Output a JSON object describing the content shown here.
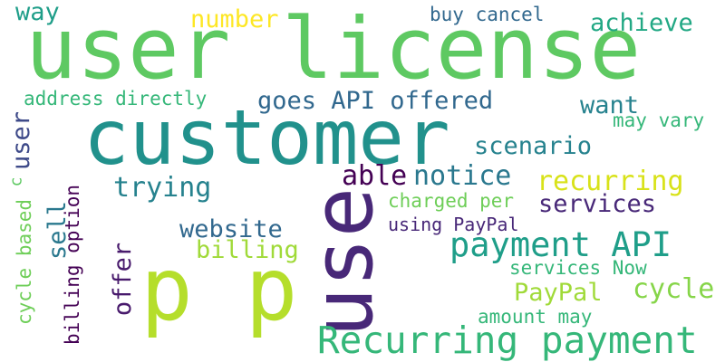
{
  "cloud": {
    "words": [
      {
        "text": "user license",
        "color": "#5ec962"
      },
      {
        "text": "customer",
        "color": "#21918c"
      },
      {
        "text": "p p",
        "color": "#b5de2b"
      },
      {
        "text": "use",
        "color": "#482878"
      },
      {
        "text": "Recurring payment",
        "color": "#35b779"
      },
      {
        "text": "payment API",
        "color": "#1f9e89"
      },
      {
        "text": "way",
        "color": "#1f9e89"
      },
      {
        "text": "number",
        "color": "#fde725"
      },
      {
        "text": "buy cancel",
        "color": "#31688e"
      },
      {
        "text": "achieve",
        "color": "#22a884"
      },
      {
        "text": "address directly",
        "color": "#35b779"
      },
      {
        "text": "goes API offered",
        "color": "#31688e"
      },
      {
        "text": "want",
        "color": "#26828e"
      },
      {
        "text": "may vary",
        "color": "#35b779"
      },
      {
        "text": "user",
        "color": "#3e4a89"
      },
      {
        "text": "scenario",
        "color": "#26828e"
      },
      {
        "text": "able",
        "color": "#440154"
      },
      {
        "text": "notice",
        "color": "#2a788e"
      },
      {
        "text": "recurring",
        "color": "#d8e219"
      },
      {
        "text": "trying",
        "color": "#26828e"
      },
      {
        "text": "charged per",
        "color": "#6ece58"
      },
      {
        "text": "services",
        "color": "#482878"
      },
      {
        "text": "website",
        "color": "#31688e"
      },
      {
        "text": "using PayPal",
        "color": "#482878"
      },
      {
        "text": "billing",
        "color": "#a0da39"
      },
      {
        "text": "sell",
        "color": "#2a788e"
      },
      {
        "text": "billing option",
        "color": "#440154"
      },
      {
        "text": "cycle based",
        "color": "#6ece58"
      },
      {
        "text": "offer",
        "color": "#481a6c"
      },
      {
        "text": "services Now",
        "color": "#35b779"
      },
      {
        "text": "PayPal",
        "color": "#a0da39"
      },
      {
        "text": "cycle",
        "color": "#86d549"
      },
      {
        "text": "amount may",
        "color": "#35b779"
      },
      {
        "text": "c",
        "color": "#5ec962"
      }
    ]
  }
}
